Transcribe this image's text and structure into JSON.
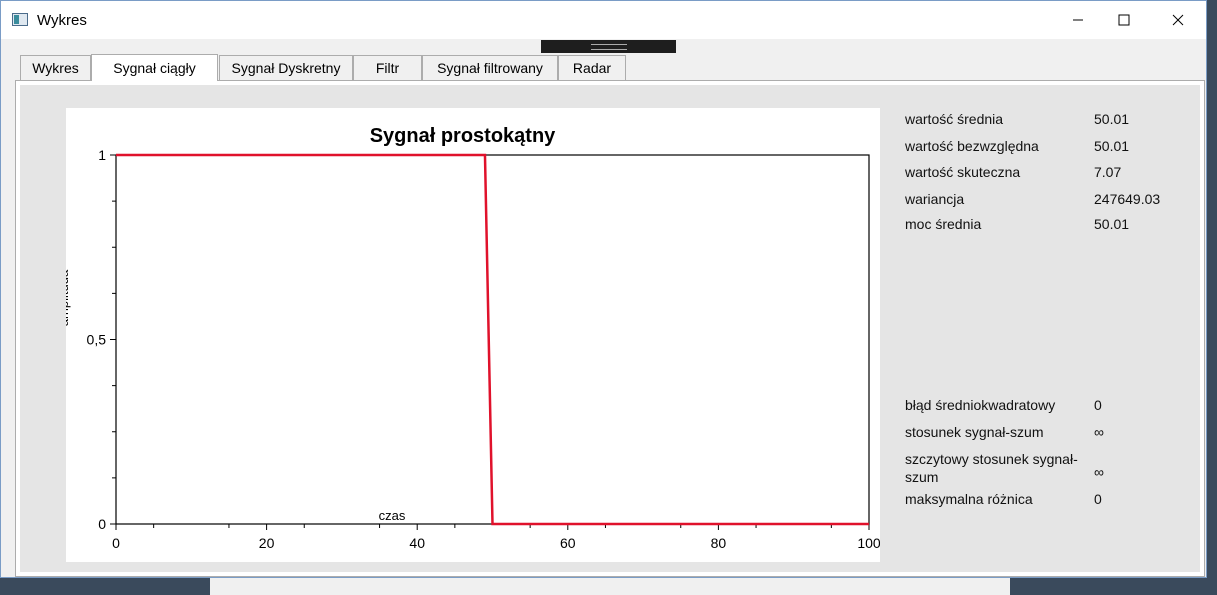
{
  "window": {
    "title": "Wykres"
  },
  "tabs": [
    {
      "label": "Wykres"
    },
    {
      "label": "Sygnał ciągły"
    },
    {
      "label": "Sygnał Dyskretny"
    },
    {
      "label": "Filtr"
    },
    {
      "label": "Sygnał filtrowany"
    },
    {
      "label": "Radar"
    }
  ],
  "active_tab": 1,
  "stats": [
    {
      "label": "wartość średnia",
      "value": "50.01"
    },
    {
      "label": "wartość bezwzględna",
      "value": "50.01"
    },
    {
      "label": "wartość skuteczna",
      "value": "7.07"
    },
    {
      "label": "wariancja",
      "value": "247649.03"
    },
    {
      "label": "moc średnia",
      "value": "50.01"
    }
  ],
  "errors": [
    {
      "label": "błąd średniokwadratowy",
      "value": "0"
    },
    {
      "label": "stosunek sygnał-szum",
      "value": "∞"
    },
    {
      "label": "szczytowy stosunek sygnał-szum",
      "value": "∞"
    },
    {
      "label": "maksymalna różnica",
      "value": "0"
    }
  ],
  "chart_data": {
    "type": "line",
    "title": "Sygnał prostokątny",
    "xlabel": "czas",
    "ylabel": "amplituda",
    "xlim": [
      0,
      100
    ],
    "ylim": [
      0,
      1
    ],
    "xticks": [
      "0",
      "20",
      "40",
      "60",
      "80",
      "100"
    ],
    "yticks": [
      "0",
      "0,5",
      "1"
    ],
    "series": [
      {
        "color": "#e0112b",
        "x": [
          0,
          49,
          50,
          100
        ],
        "y": [
          1,
          1,
          0,
          0
        ]
      }
    ],
    "grid": false
  }
}
